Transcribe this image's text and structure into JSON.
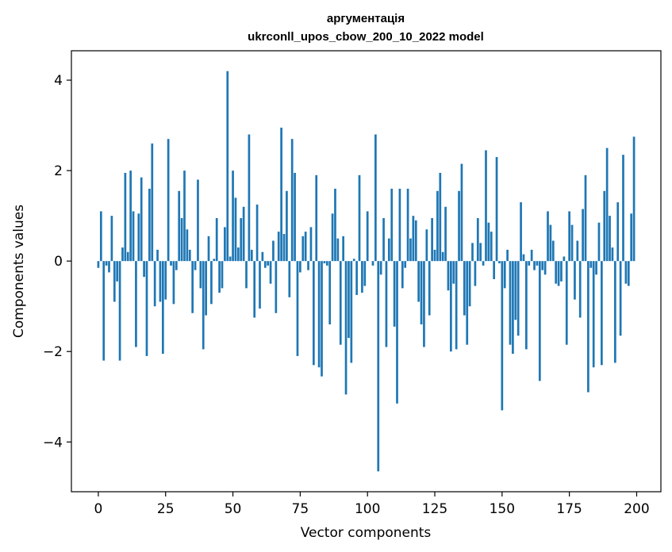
{
  "chart_data": {
    "type": "bar",
    "title_line1": "аргументація",
    "title_line2": "ukrconll_upos_cbow_200_10_2022 model",
    "xlabel": "Vector components",
    "ylabel": "Components values",
    "xlim": [
      -10,
      209
    ],
    "ylim": [
      -5.1,
      4.65
    ],
    "xticks": [
      0,
      25,
      50,
      75,
      100,
      125,
      150,
      175,
      200
    ],
    "xtick_labels": [
      "0",
      "25",
      "50",
      "75",
      "100",
      "125",
      "150",
      "175",
      "200"
    ],
    "yticks": [
      -4,
      -2,
      0,
      2,
      4
    ],
    "ytick_labels": [
      "−4",
      "−2",
      "0",
      "2",
      "4"
    ],
    "color": "#1f77b4",
    "values": [
      -0.15,
      1.1,
      -2.2,
      -0.1,
      -0.25,
      1.0,
      -0.9,
      -0.45,
      -2.2,
      0.3,
      1.95,
      0.2,
      2.0,
      1.1,
      -1.9,
      1.05,
      1.85,
      -0.35,
      -2.1,
      1.6,
      2.6,
      -1.0,
      0.25,
      -0.9,
      -2.05,
      -0.85,
      2.7,
      -0.1,
      -0.95,
      -0.2,
      1.55,
      0.95,
      2.0,
      0.7,
      0.25,
      -1.15,
      -0.2,
      1.8,
      -0.6,
      -1.95,
      -1.2,
      0.55,
      -0.95,
      0.05,
      0.95,
      -0.7,
      -0.6,
      0.75,
      4.2,
      0.1,
      2.0,
      1.4,
      0.3,
      0.95,
      1.2,
      -0.6,
      2.8,
      0.25,
      -1.25,
      1.25,
      -1.05,
      0.2,
      -0.15,
      -0.1,
      -0.5,
      0.45,
      -1.15,
      0.65,
      2.95,
      0.6,
      1.55,
      -0.8,
      2.7,
      1.95,
      -2.1,
      -0.25,
      0.55,
      0.65,
      -0.2,
      0.75,
      -2.3,
      1.9,
      -2.35,
      -2.55,
      -0.05,
      -0.1,
      -1.4,
      1.05,
      1.6,
      0.5,
      -1.85,
      0.55,
      -2.95,
      -1.7,
      -2.25,
      0.05,
      -0.75,
      1.9,
      -0.7,
      -0.55,
      1.1,
      0.0,
      -0.1,
      2.8,
      -4.65,
      -0.3,
      0.95,
      -1.9,
      0.5,
      1.6,
      -1.45,
      -3.15,
      1.6,
      -0.6,
      -0.15,
      1.6,
      0.5,
      1.0,
      0.9,
      -0.9,
      -1.4,
      -1.9,
      0.7,
      -1.2,
      0.95,
      0.25,
      1.55,
      1.95,
      0.2,
      1.2,
      -0.65,
      -2.0,
      -0.5,
      -1.95,
      1.55,
      2.15,
      -1.2,
      -1.85,
      -1.0,
      0.4,
      -0.55,
      0.95,
      0.4,
      -0.1,
      2.45,
      0.85,
      0.65,
      -0.4,
      2.3,
      -0.05,
      -3.3,
      -0.6,
      0.25,
      -1.85,
      -2.05,
      -1.3,
      -1.65,
      1.3,
      0.15,
      -1.95,
      -0.1,
      0.25,
      -0.2,
      -0.1,
      -2.65,
      -0.2,
      -0.3,
      1.1,
      0.8,
      0.45,
      -0.5,
      -0.55,
      -0.45,
      0.1,
      -1.85,
      1.1,
      0.8,
      -0.85,
      0.45,
      -1.25,
      1.15,
      1.9,
      -2.9,
      -0.15,
      -2.35,
      -0.3,
      0.85,
      -2.3,
      1.55,
      2.5,
      1.0,
      0.3,
      -2.25,
      1.3,
      -1.65,
      2.35,
      -0.5,
      -0.55,
      1.05,
      2.75
    ]
  }
}
